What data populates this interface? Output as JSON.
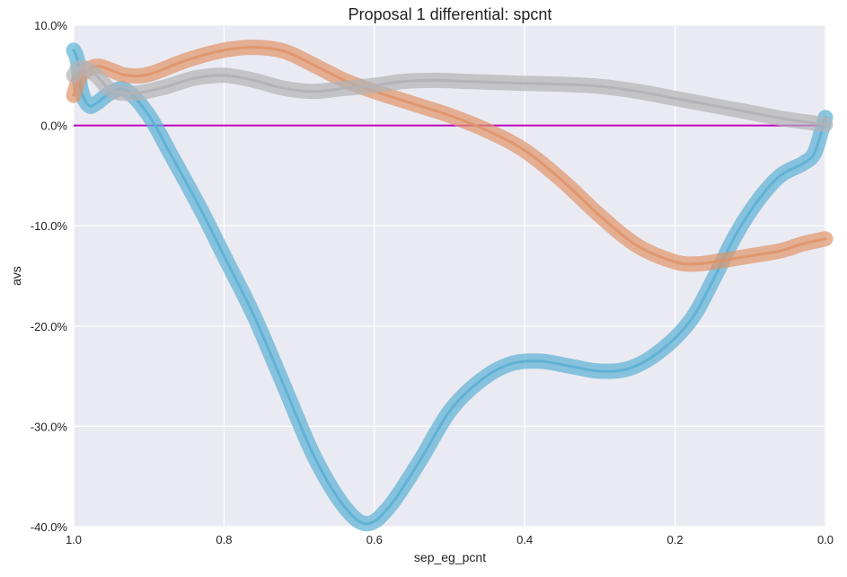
{
  "chart_data": {
    "type": "line",
    "title": "Proposal 1 differential: spcnt",
    "xlabel": "sep_eg_pcnt",
    "ylabel": "avs",
    "xlim": [
      1.0,
      0.0
    ],
    "ylim": [
      -40,
      10
    ],
    "x_ticks": [
      "1.0",
      "0.8",
      "0.6",
      "0.4",
      "0.2",
      "0.0"
    ],
    "y_ticks": [
      "10.0%",
      "0.0%",
      "-10.0%",
      "-20.0%",
      "-30.0%",
      "-40.0%"
    ],
    "grid": true,
    "reference_line": {
      "y": 0,
      "color": "#bf00bf"
    },
    "series": [
      {
        "color": "#5bb0d4",
        "points": [
          [
            1.0,
            7.5
          ],
          [
            0.995,
            6.5
          ],
          [
            0.99,
            3.5
          ],
          [
            0.98,
            2.0
          ],
          [
            0.97,
            2.2
          ],
          [
            0.95,
            3.3
          ],
          [
            0.93,
            3.5
          ],
          [
            0.9,
            1.0
          ],
          [
            0.87,
            -3.0
          ],
          [
            0.83,
            -8.5
          ],
          [
            0.8,
            -13.0
          ],
          [
            0.76,
            -19.0
          ],
          [
            0.72,
            -26.0
          ],
          [
            0.68,
            -33.0
          ],
          [
            0.64,
            -38.0
          ],
          [
            0.61,
            -39.7
          ],
          [
            0.58,
            -38.0
          ],
          [
            0.54,
            -33.5
          ],
          [
            0.5,
            -28.5
          ],
          [
            0.46,
            -25.5
          ],
          [
            0.42,
            -23.8
          ],
          [
            0.38,
            -23.5
          ],
          [
            0.34,
            -24.0
          ],
          [
            0.3,
            -24.5
          ],
          [
            0.26,
            -24.2
          ],
          [
            0.22,
            -22.5
          ],
          [
            0.18,
            -19.5
          ],
          [
            0.15,
            -15.5
          ],
          [
            0.12,
            -11.0
          ],
          [
            0.09,
            -7.5
          ],
          [
            0.06,
            -5.0
          ],
          [
            0.03,
            -3.8
          ],
          [
            0.015,
            -2.8
          ],
          [
            0.005,
            -0.5
          ],
          [
            0.0,
            0.8
          ]
        ]
      },
      {
        "color": "#e0946a",
        "points": [
          [
            1.0,
            3.0
          ],
          [
            0.99,
            5.0
          ],
          [
            0.97,
            5.9
          ],
          [
            0.95,
            5.5
          ],
          [
            0.93,
            5.0
          ],
          [
            0.9,
            5.1
          ],
          [
            0.85,
            6.5
          ],
          [
            0.8,
            7.5
          ],
          [
            0.76,
            7.8
          ],
          [
            0.72,
            7.4
          ],
          [
            0.68,
            6.0
          ],
          [
            0.64,
            4.5
          ],
          [
            0.6,
            3.4
          ],
          [
            0.55,
            2.2
          ],
          [
            0.5,
            1.0
          ],
          [
            0.45,
            -0.5
          ],
          [
            0.4,
            -2.5
          ],
          [
            0.35,
            -5.5
          ],
          [
            0.3,
            -9.0
          ],
          [
            0.25,
            -12.0
          ],
          [
            0.2,
            -13.6
          ],
          [
            0.17,
            -13.8
          ],
          [
            0.14,
            -13.5
          ],
          [
            0.1,
            -13.0
          ],
          [
            0.06,
            -12.5
          ],
          [
            0.03,
            -11.8
          ],
          [
            0.0,
            -11.3
          ]
        ]
      },
      {
        "color": "#b2b2b6",
        "points": [
          [
            1.0,
            5.0
          ],
          [
            0.99,
            5.8
          ],
          [
            0.97,
            5.0
          ],
          [
            0.95,
            3.5
          ],
          [
            0.92,
            3.2
          ],
          [
            0.88,
            3.8
          ],
          [
            0.84,
            4.7
          ],
          [
            0.8,
            5.0
          ],
          [
            0.76,
            4.5
          ],
          [
            0.72,
            3.7
          ],
          [
            0.68,
            3.4
          ],
          [
            0.64,
            3.7
          ],
          [
            0.6,
            4.0
          ],
          [
            0.56,
            4.4
          ],
          [
            0.52,
            4.5
          ],
          [
            0.48,
            4.4
          ],
          [
            0.44,
            4.3
          ],
          [
            0.4,
            4.2
          ],
          [
            0.35,
            4.1
          ],
          [
            0.3,
            3.9
          ],
          [
            0.25,
            3.4
          ],
          [
            0.2,
            2.7
          ],
          [
            0.15,
            2.0
          ],
          [
            0.1,
            1.3
          ],
          [
            0.05,
            0.6
          ],
          [
            0.0,
            0.1
          ]
        ]
      }
    ]
  }
}
